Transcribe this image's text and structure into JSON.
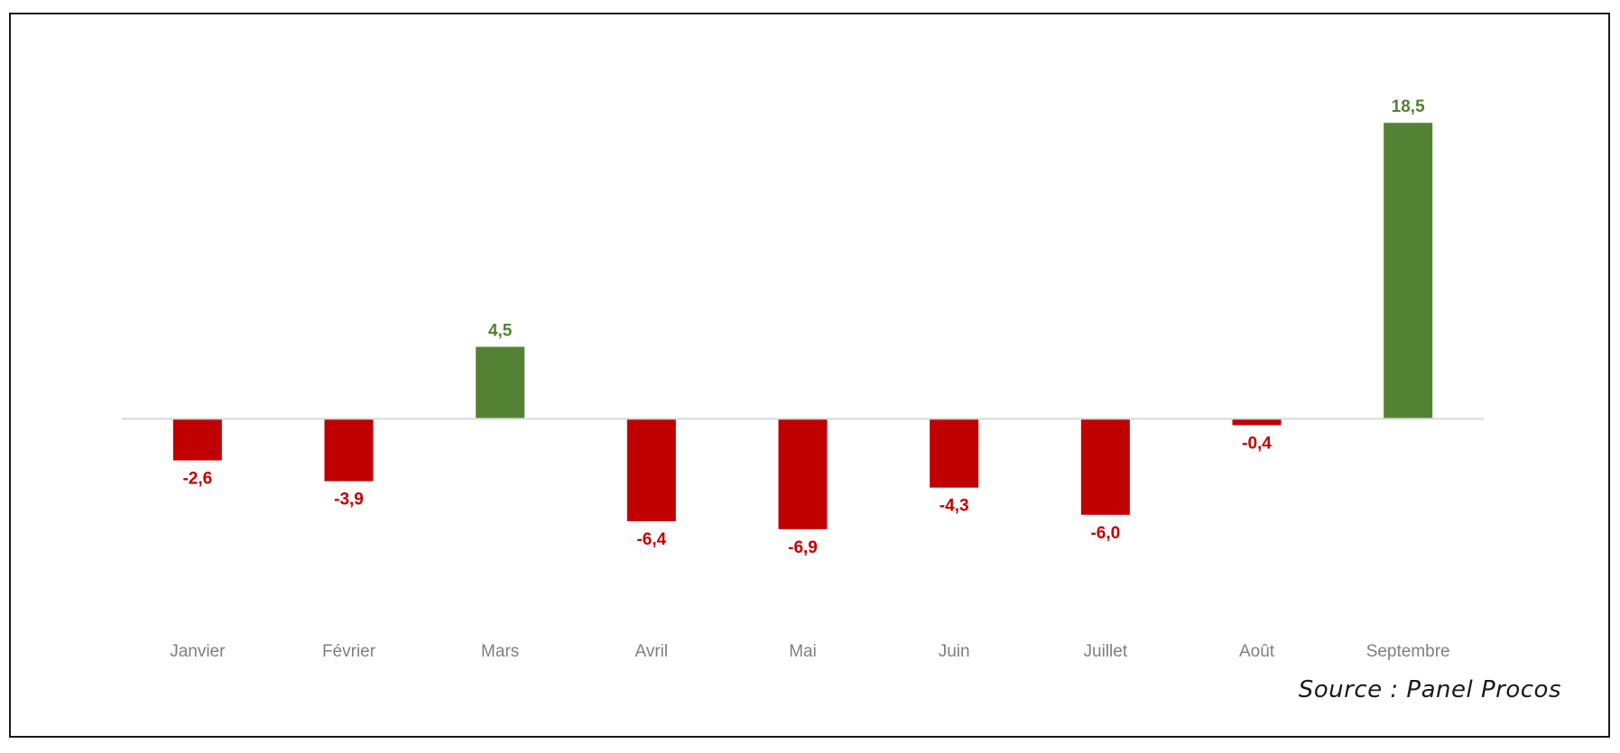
{
  "chart_data": {
    "type": "bar",
    "title": "",
    "xlabel": "",
    "ylabel": "",
    "categories": [
      "Janvier",
      "Février",
      "Mars",
      "Avril",
      "Mai",
      "Juin",
      "Juillet",
      "Août",
      "Septembre"
    ],
    "values": [
      -2.6,
      -3.9,
      4.5,
      -6.4,
      -6.9,
      -4.3,
      -6.0,
      -0.4,
      18.5
    ],
    "value_labels": [
      "-2,6",
      "-3,9",
      "4,5",
      "-6,4",
      "-6,9",
      "-4,3",
      "-6,0",
      "-0,4",
      "18,5"
    ],
    "ylim": [
      -10.8,
      21.5
    ],
    "grid": false,
    "legend": "none",
    "colors": {
      "positive": "#548235",
      "negative": "#c00000",
      "baseline": "#d9d9d9",
      "tick_label": "#7f7f7f"
    }
  },
  "source_note": "Source : Panel Procos"
}
